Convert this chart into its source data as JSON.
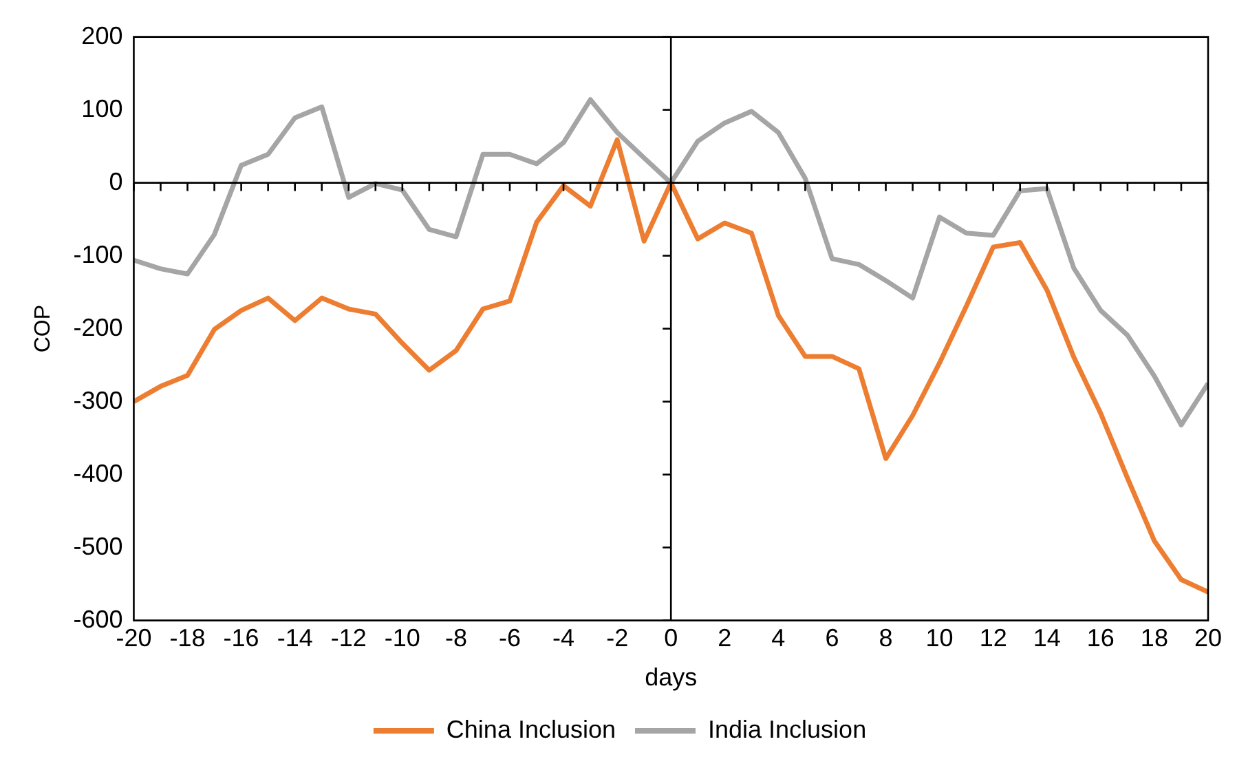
{
  "chart_data": {
    "type": "line",
    "xlabel": "days",
    "ylabel": "COP",
    "x": [
      -20,
      -19,
      -18,
      -17,
      -16,
      -15,
      -14,
      -13,
      -12,
      -11,
      -10,
      -9,
      -8,
      -7,
      -6,
      -5,
      -4,
      -3,
      -2,
      -1,
      0,
      1,
      2,
      3,
      4,
      5,
      6,
      7,
      8,
      9,
      10,
      11,
      12,
      13,
      14,
      15,
      16,
      17,
      18,
      19,
      20
    ],
    "series": [
      {
        "name": "China Inclusion",
        "color": "#ed7d31",
        "values": [
          -300,
          -279,
          -264,
          -201,
          -175,
          -158,
          -189,
          -158,
          -173,
          -180,
          -220,
          -257,
          -230,
          -173,
          -162,
          -54,
          -4,
          -32,
          59,
          -80,
          0,
          -77,
          -55,
          -69,
          -182,
          -238,
          -238,
          -255,
          -378,
          -319,
          -247,
          -169,
          -88,
          -82,
          -147,
          -239,
          -316,
          -405,
          -491,
          -544,
          -561
        ]
      },
      {
        "name": "India Inclusion",
        "color": "#a5a5a5",
        "values": [
          -106,
          -118,
          -125,
          -71,
          24,
          39,
          89,
          104,
          -20,
          -1,
          -10,
          -64,
          -74,
          39,
          39,
          26,
          55,
          114,
          69,
          34,
          0,
          57,
          82,
          98,
          69,
          6,
          -104,
          -112,
          -134,
          -158,
          -47,
          -69,
          -72,
          -11,
          -8,
          -117,
          -175,
          -209,
          -265,
          -332,
          -275
        ]
      }
    ],
    "xlim": [
      -20,
      20
    ],
    "xticks": [
      -20,
      -18,
      -16,
      -14,
      -12,
      -10,
      -8,
      -6,
      -4,
      -2,
      0,
      2,
      4,
      6,
      8,
      10,
      12,
      14,
      16,
      18,
      20
    ],
    "ylim": [
      -600,
      200
    ],
    "yticks": [
      -600,
      -500,
      -400,
      -300,
      -200,
      -100,
      0,
      100,
      200
    ],
    "legend": "bottom",
    "marker": "none",
    "line_style": "solid"
  }
}
